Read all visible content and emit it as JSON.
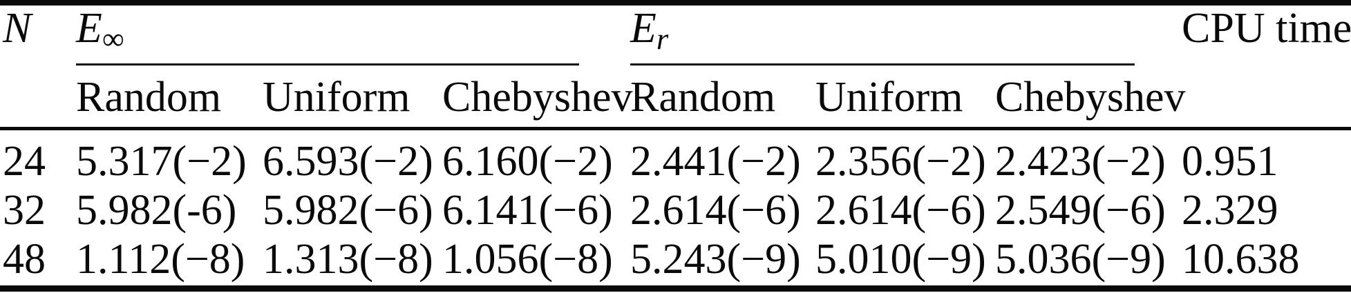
{
  "colors": {
    "background": "#ffffff",
    "text": "#0a0a0a",
    "rule": "#0a0a0a"
  },
  "table": {
    "header": {
      "n_label": "N",
      "e_inf_base": "E",
      "e_inf_sub": "∞",
      "e_r_base": "E",
      "e_r_sub": "r",
      "cpu_label": "CPU time"
    },
    "subheaders": [
      "Random",
      "Uniform",
      "Chebyshev",
      "Random",
      "Uniform",
      "Chebyshev"
    ],
    "rows": [
      {
        "n": "24",
        "cells": [
          "5.317(−2)",
          "6.593(−2)",
          "6.160(−2)",
          "2.441(−2)",
          "2.356(−2)",
          "2.423(−2)",
          "0.951"
        ]
      },
      {
        "n": "32",
        "cells": [
          "5.982(-6)",
          "5.982(−6)",
          "6.141(−6)",
          "2.614(−6)",
          "2.614(−6)",
          "2.549(−6)",
          "2.329"
        ]
      },
      {
        "n": "48",
        "cells": [
          "1.112(−8)",
          "1.313(−8)",
          "1.056(−8)",
          "5.243(−9)",
          "5.010(−9)",
          "5.036(−9)",
          "10.638"
        ]
      }
    ]
  }
}
